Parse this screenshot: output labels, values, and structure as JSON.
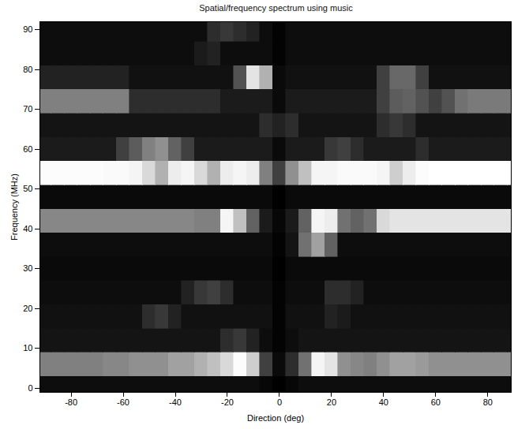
{
  "chart_data": {
    "type": "heatmap",
    "title": "Spatial/frequency spectrum using music",
    "xlabel": "Direction (deg)",
    "ylabel": "Frequency (MHz)",
    "color": "gray",
    "xlim": [
      -92,
      89
    ],
    "ylim": [
      -1,
      92
    ],
    "xticks": [
      -80,
      -60,
      -40,
      -20,
      0,
      20,
      40,
      60,
      80
    ],
    "yticks": [
      0,
      10,
      20,
      30,
      40,
      50,
      60,
      70,
      80,
      90
    ],
    "x": [
      -90,
      -85,
      -80,
      -75,
      -70,
      -65,
      -60,
      -55,
      -50,
      -45,
      -40,
      -35,
      -30,
      -25,
      -20,
      -15,
      -10,
      -5,
      0,
      5,
      10,
      15,
      20,
      25,
      30,
      35,
      40,
      45,
      50,
      55,
      60,
      65,
      70,
      75,
      80,
      85,
      90
    ],
    "y": [
      0,
      6,
      12,
      18,
      24,
      30,
      36,
      42,
      48,
      54,
      60,
      66,
      72,
      78,
      84,
      90
    ],
    "values": [
      [
        0.06,
        0.06,
        0.06,
        0.06,
        0.06,
        0.06,
        0.06,
        0.06,
        0.06,
        0.06,
        0.06,
        0.06,
        0.06,
        0.06,
        0.06,
        0.06,
        0.06,
        0.04,
        0.02,
        0.04,
        0.06,
        0.06,
        0.06,
        0.06,
        0.06,
        0.06,
        0.06,
        0.06,
        0.06,
        0.06,
        0.06,
        0.06,
        0.06,
        0.06,
        0.06,
        0.06,
        0.06
      ],
      [
        0.4,
        0.4,
        0.4,
        0.4,
        0.4,
        0.42,
        0.42,
        0.45,
        0.45,
        0.45,
        0.5,
        0.5,
        0.55,
        0.6,
        0.7,
        0.9,
        0.65,
        0.2,
        0.05,
        0.15,
        0.35,
        0.85,
        0.75,
        0.45,
        0.42,
        0.4,
        0.45,
        0.5,
        0.5,
        0.48,
        0.45,
        0.45,
        0.45,
        0.45,
        0.45,
        0.45,
        0.45
      ],
      [
        0.08,
        0.08,
        0.08,
        0.08,
        0.08,
        0.08,
        0.08,
        0.08,
        0.08,
        0.08,
        0.08,
        0.08,
        0.08,
        0.08,
        0.15,
        0.18,
        0.12,
        0.06,
        0.03,
        0.06,
        0.08,
        0.08,
        0.08,
        0.08,
        0.08,
        0.08,
        0.08,
        0.08,
        0.08,
        0.08,
        0.08,
        0.08,
        0.08,
        0.08,
        0.08,
        0.08,
        0.08
      ],
      [
        0.07,
        0.07,
        0.07,
        0.07,
        0.07,
        0.07,
        0.07,
        0.07,
        0.15,
        0.18,
        0.12,
        0.07,
        0.07,
        0.07,
        0.07,
        0.07,
        0.07,
        0.07,
        0.03,
        0.07,
        0.07,
        0.07,
        0.12,
        0.1,
        0.07,
        0.07,
        0.07,
        0.07,
        0.07,
        0.07,
        0.07,
        0.07,
        0.07,
        0.07,
        0.07,
        0.07,
        0.07
      ],
      [
        0.06,
        0.06,
        0.06,
        0.06,
        0.06,
        0.06,
        0.06,
        0.06,
        0.06,
        0.06,
        0.06,
        0.12,
        0.18,
        0.2,
        0.15,
        0.06,
        0.06,
        0.06,
        0.03,
        0.06,
        0.06,
        0.06,
        0.15,
        0.15,
        0.12,
        0.06,
        0.06,
        0.06,
        0.06,
        0.06,
        0.06,
        0.06,
        0.06,
        0.06,
        0.06,
        0.06,
        0.06
      ],
      [
        0.05,
        0.05,
        0.05,
        0.05,
        0.05,
        0.05,
        0.05,
        0.05,
        0.05,
        0.05,
        0.05,
        0.05,
        0.05,
        0.05,
        0.05,
        0.05,
        0.05,
        0.05,
        0.02,
        0.05,
        0.05,
        0.05,
        0.05,
        0.05,
        0.05,
        0.05,
        0.05,
        0.05,
        0.05,
        0.05,
        0.05,
        0.05,
        0.05,
        0.05,
        0.05,
        0.05,
        0.05
      ],
      [
        0.06,
        0.06,
        0.06,
        0.06,
        0.06,
        0.06,
        0.06,
        0.06,
        0.06,
        0.06,
        0.06,
        0.06,
        0.06,
        0.06,
        0.06,
        0.06,
        0.06,
        0.06,
        0.03,
        0.08,
        0.35,
        0.5,
        0.3,
        0.06,
        0.06,
        0.06,
        0.06,
        0.06,
        0.06,
        0.06,
        0.06,
        0.06,
        0.06,
        0.06,
        0.06,
        0.06,
        0.06
      ],
      [
        0.42,
        0.42,
        0.42,
        0.42,
        0.42,
        0.42,
        0.42,
        0.42,
        0.42,
        0.42,
        0.42,
        0.42,
        0.4,
        0.4,
        0.85,
        0.6,
        0.3,
        0.1,
        0.04,
        0.1,
        0.3,
        0.85,
        0.8,
        0.35,
        0.3,
        0.35,
        0.7,
        0.75,
        0.75,
        0.75,
        0.75,
        0.75,
        0.75,
        0.75,
        0.75,
        0.75,
        0.75
      ],
      [
        0.05,
        0.05,
        0.05,
        0.05,
        0.05,
        0.05,
        0.05,
        0.05,
        0.05,
        0.05,
        0.05,
        0.05,
        0.05,
        0.05,
        0.05,
        0.05,
        0.05,
        0.05,
        0.02,
        0.05,
        0.05,
        0.05,
        0.05,
        0.05,
        0.05,
        0.05,
        0.05,
        0.05,
        0.05,
        0.05,
        0.05,
        0.05,
        0.05,
        0.05,
        0.05,
        0.05,
        0.05
      ],
      [
        0.9,
        0.9,
        0.9,
        0.9,
        0.9,
        0.88,
        0.88,
        0.85,
        0.7,
        0.55,
        0.8,
        0.85,
        0.7,
        0.55,
        0.8,
        0.85,
        0.8,
        0.4,
        0.2,
        0.45,
        0.6,
        0.85,
        0.85,
        0.88,
        0.88,
        0.88,
        0.85,
        0.65,
        0.8,
        0.9,
        0.92,
        0.92,
        0.92,
        0.92,
        0.92,
        0.92,
        0.92
      ],
      [
        0.1,
        0.1,
        0.1,
        0.1,
        0.1,
        0.1,
        0.2,
        0.28,
        0.4,
        0.45,
        0.3,
        0.2,
        0.1,
        0.1,
        0.1,
        0.1,
        0.1,
        0.1,
        0.05,
        0.1,
        0.1,
        0.1,
        0.18,
        0.2,
        0.15,
        0.1,
        0.1,
        0.1,
        0.1,
        0.15,
        0.1,
        0.1,
        0.1,
        0.1,
        0.1,
        0.1,
        0.1
      ],
      [
        0.08,
        0.08,
        0.08,
        0.08,
        0.08,
        0.08,
        0.08,
        0.08,
        0.08,
        0.08,
        0.08,
        0.08,
        0.08,
        0.08,
        0.08,
        0.08,
        0.08,
        0.15,
        0.12,
        0.15,
        0.08,
        0.08,
        0.08,
        0.08,
        0.08,
        0.08,
        0.15,
        0.18,
        0.15,
        0.08,
        0.08,
        0.08,
        0.08,
        0.08,
        0.08,
        0.08,
        0.08
      ],
      [
        0.4,
        0.4,
        0.4,
        0.4,
        0.4,
        0.4,
        0.4,
        0.15,
        0.15,
        0.15,
        0.15,
        0.15,
        0.15,
        0.15,
        0.1,
        0.1,
        0.1,
        0.1,
        0.05,
        0.1,
        0.1,
        0.1,
        0.1,
        0.1,
        0.1,
        0.1,
        0.2,
        0.28,
        0.3,
        0.25,
        0.2,
        0.25,
        0.35,
        0.38,
        0.38,
        0.38,
        0.38
      ],
      [
        0.12,
        0.12,
        0.12,
        0.12,
        0.12,
        0.12,
        0.12,
        0.07,
        0.07,
        0.07,
        0.07,
        0.07,
        0.07,
        0.07,
        0.07,
        0.25,
        0.75,
        0.55,
        0.05,
        0.07,
        0.07,
        0.07,
        0.07,
        0.07,
        0.07,
        0.07,
        0.2,
        0.32,
        0.32,
        0.2,
        0.07,
        0.07,
        0.07,
        0.07,
        0.07,
        0.07,
        0.07
      ],
      [
        0.06,
        0.06,
        0.06,
        0.06,
        0.06,
        0.06,
        0.06,
        0.06,
        0.06,
        0.06,
        0.06,
        0.06,
        0.1,
        0.12,
        0.06,
        0.06,
        0.06,
        0.06,
        0.03,
        0.06,
        0.06,
        0.06,
        0.06,
        0.06,
        0.06,
        0.06,
        0.06,
        0.06,
        0.06,
        0.06,
        0.06,
        0.06,
        0.06,
        0.06,
        0.06,
        0.06,
        0.06
      ],
      [
        0.06,
        0.06,
        0.06,
        0.06,
        0.06,
        0.06,
        0.06,
        0.06,
        0.06,
        0.06,
        0.06,
        0.06,
        0.06,
        0.15,
        0.18,
        0.15,
        0.12,
        0.06,
        0.03,
        0.06,
        0.06,
        0.06,
        0.06,
        0.06,
        0.06,
        0.06,
        0.06,
        0.06,
        0.06,
        0.06,
        0.06,
        0.06,
        0.06,
        0.06,
        0.06,
        0.06,
        0.06
      ]
    ]
  }
}
